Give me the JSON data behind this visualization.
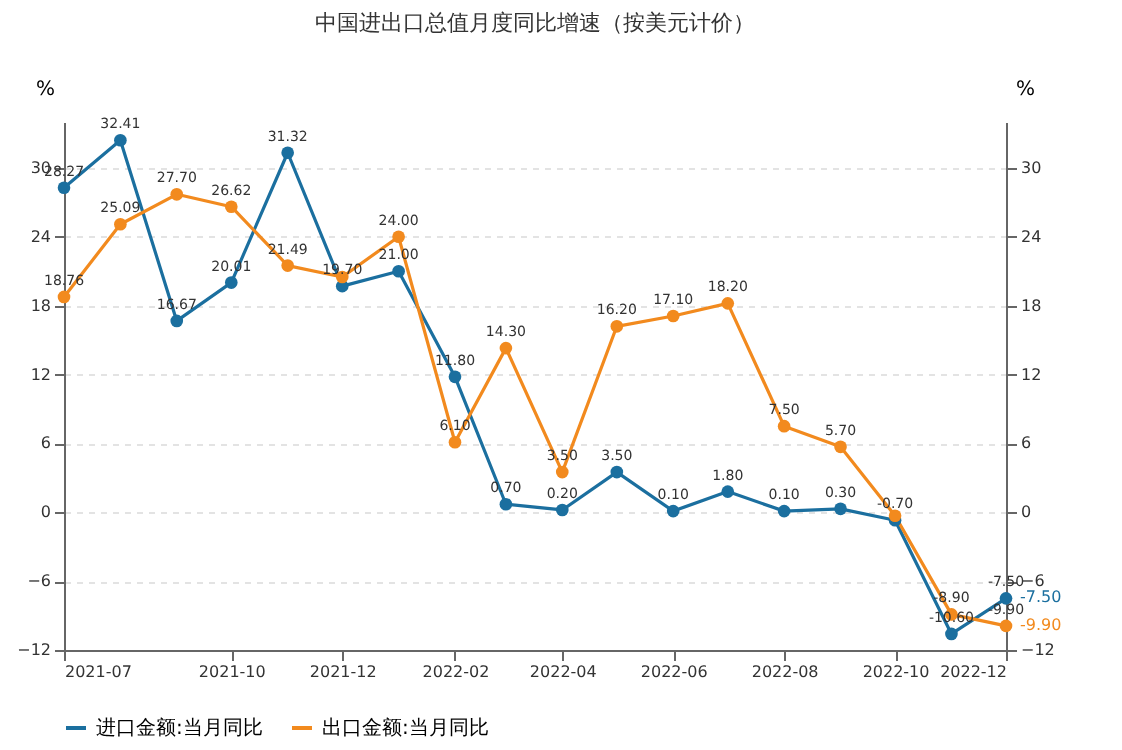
{
  "chart_data": {
    "type": "line",
    "title": "中国进出口总值月度同比增速（按美元计价）",
    "ylabel": "%",
    "y2label": "%",
    "x": [
      "2021-07",
      "2021-08",
      "2021-09",
      "2021-10",
      "2021-11",
      "2021-12",
      "2022-01",
      "2022-02",
      "2022-03",
      "2022-04",
      "2022-05",
      "2022-06",
      "2022-07",
      "2022-08",
      "2022-09",
      "2022-10",
      "2022-11",
      "2022-12"
    ],
    "series": [
      {
        "name": "进口金额:当月同比",
        "color": "#1b6f9f",
        "values": [
          28.27,
          32.41,
          16.67,
          20.01,
          31.32,
          19.7,
          21.0,
          11.8,
          0.7,
          0.2,
          3.5,
          0.1,
          1.8,
          0.1,
          0.3,
          -0.7,
          -10.6,
          -7.5
        ],
        "value_labels": [
          "28.27",
          "32.41",
          "16.67",
          "20.01",
          "31.32",
          "19.70",
          "21.00",
          "11.80",
          "0.70",
          "0.20",
          "3.50",
          "0.10",
          "1.80",
          "0.10",
          "0.30",
          "-0.70",
          "-10.60",
          "-7.50"
        ]
      },
      {
        "name": "出口金额:当月同比",
        "color": "#f28a1e",
        "values": [
          18.76,
          25.09,
          27.7,
          26.62,
          21.49,
          20.5,
          24.0,
          6.1,
          14.3,
          3.5,
          16.2,
          17.1,
          18.2,
          7.5,
          5.7,
          -0.3,
          -8.9,
          -9.9
        ],
        "value_labels": [
          "18.76",
          "25.09",
          "27.70",
          "26.62",
          "21.49",
          null,
          "24.00",
          "6.10",
          "14.30",
          "3.50",
          "16.20",
          "17.10",
          "18.20",
          "7.50",
          "5.70",
          null,
          "-8.90",
          "-9.90"
        ]
      }
    ],
    "xlim": [
      "2021-07",
      "2022-12"
    ],
    "xticks": [
      "2021-07",
      "2021-10",
      "2021-12",
      "2022-02",
      "2022-04",
      "2022-06",
      "2022-08",
      "2022-10",
      "2022-12"
    ],
    "ylim": [
      -12,
      34
    ],
    "yticks": [
      -12,
      -6,
      0,
      6,
      12,
      18,
      24,
      30
    ],
    "y2lim": [
      -12,
      34
    ],
    "y2ticks": [
      -12,
      -6,
      0,
      6,
      12,
      18,
      24,
      30
    ],
    "annotations": [
      {
        "text": "-7.50",
        "x": "2022-12",
        "y": -7.5
      },
      {
        "text": "-9.90",
        "x": "2022-12",
        "y": -9.9
      }
    ],
    "grid": "y",
    "legend": "bottom",
    "marker": "circle",
    "line_style": "solid"
  }
}
